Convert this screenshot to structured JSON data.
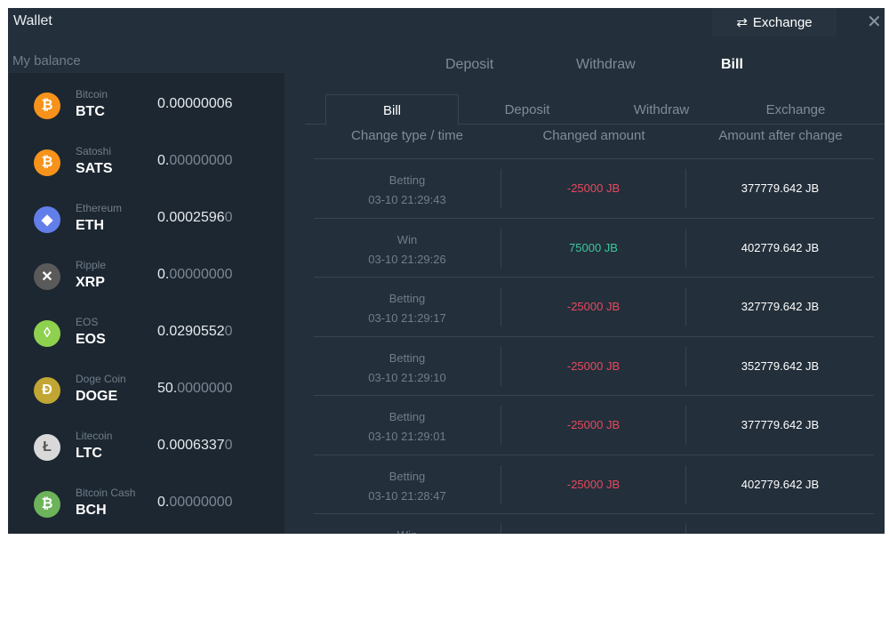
{
  "header": {
    "title": "Wallet",
    "exchange_label": "Exchange",
    "exchange_icon": "swap-arrows-icon",
    "close_icon": "close-icon"
  },
  "balance": {
    "label": "My balance",
    "coins": [
      {
        "name": "Bitcoin",
        "symbol": "BTC",
        "value": "0.00000006",
        "dim": "",
        "color": "#f7931a",
        "glyph": "₿"
      },
      {
        "name": "Satoshi",
        "symbol": "SATS",
        "value": "0.",
        "dim": "00000000",
        "color": "#f7931a",
        "glyph": "₿"
      },
      {
        "name": "Ethereum",
        "symbol": "ETH",
        "value": "0.0002596",
        "dim": "0",
        "color": "#627eea",
        "glyph": "◆"
      },
      {
        "name": "Ripple",
        "symbol": "XRP",
        "value": "0.",
        "dim": "00000000",
        "color": "#5a5a5a",
        "glyph": "✕"
      },
      {
        "name": "EOS",
        "symbol": "EOS",
        "value": "0.0290552",
        "dim": "0",
        "color": "#8fd14f",
        "glyph": "◊"
      },
      {
        "name": "Doge Coin",
        "symbol": "DOGE",
        "value": "50.",
        "dim": "0000000",
        "color": "#c2a633",
        "glyph": "Ð"
      },
      {
        "name": "Litecoin",
        "symbol": "LTC",
        "value": "0.0006337",
        "dim": "0",
        "color": "#d9d9d9",
        "glyph": "Ł"
      },
      {
        "name": "Bitcoin Cash",
        "symbol": "BCH",
        "value": "0.",
        "dim": "00000000",
        "color": "#6cb35a",
        "glyph": "₿"
      }
    ]
  },
  "top_tabs": [
    {
      "label": "Deposit"
    },
    {
      "label": "Withdraw"
    },
    {
      "label": "Bill",
      "active": true
    }
  ],
  "sub_tabs": [
    {
      "label": "Bill",
      "active": true
    },
    {
      "label": "Deposit"
    },
    {
      "label": "Withdraw"
    },
    {
      "label": "Exchange"
    }
  ],
  "table": {
    "headers": [
      "Change type / time",
      "Changed amount",
      "Amount after change"
    ],
    "rows": [
      {
        "type": "Betting",
        "time": "03-10 21:29:43",
        "amount": "-25000 JB",
        "after": "377779.642 JB"
      },
      {
        "type": "Win",
        "time": "03-10 21:29:26",
        "amount": "75000 JB",
        "after": "402779.642 JB"
      },
      {
        "type": "Betting",
        "time": "03-10 21:29:17",
        "amount": "-25000 JB",
        "after": "327779.642 JB"
      },
      {
        "type": "Betting",
        "time": "03-10 21:29:10",
        "amount": "-25000 JB",
        "after": "352779.642 JB"
      },
      {
        "type": "Betting",
        "time": "03-10 21:29:01",
        "amount": "-25000 JB",
        "after": "377779.642 JB"
      },
      {
        "type": "Betting",
        "time": "03-10 21:28:47",
        "amount": "-25000 JB",
        "after": "402779.642 JB"
      },
      {
        "type": "Win",
        "time": "",
        "amount": "",
        "after": ""
      }
    ]
  },
  "colors": {
    "negative": "#e8485f",
    "positive": "#3cc7a0",
    "background": "#232f3a"
  }
}
